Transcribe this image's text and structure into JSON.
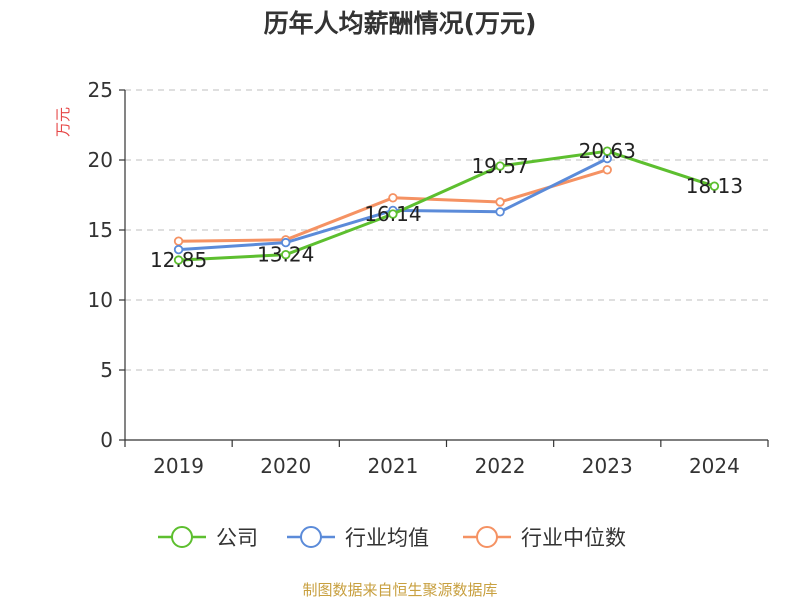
{
  "chart_data": {
    "type": "line",
    "title": "历年人均薪酬情况(万元)",
    "ylabel": "万元",
    "ylim": [
      0,
      25
    ],
    "yticks": [
      0,
      5,
      10,
      15,
      20,
      25
    ],
    "categories": [
      "2019",
      "2020",
      "2021",
      "2022",
      "2023",
      "2024"
    ],
    "series": [
      {
        "name": "公司",
        "color": "#5dbf2f",
        "values": [
          12.85,
          13.24,
          16.14,
          19.57,
          20.63,
          18.13
        ],
        "labels": [
          "12.85",
          "13.24",
          "16.14",
          "19.57",
          "20.63",
          "18.13"
        ]
      },
      {
        "name": "行业均值",
        "color": "#5b8bd9",
        "values": [
          13.6,
          14.1,
          16.4,
          16.3,
          20.1,
          null
        ]
      },
      {
        "name": "行业中位数",
        "color": "#f59263",
        "values": [
          14.2,
          14.3,
          17.3,
          17.0,
          19.3,
          null
        ]
      }
    ],
    "grid": "horizontal-dashed",
    "legend_position": "bottom"
  },
  "source_text": "制图数据来自恒生聚源数据库",
  "colors": {
    "axis": "#333333",
    "grid": "#cccccc",
    "ylabel": "#e64646",
    "source": "#c8a040"
  }
}
